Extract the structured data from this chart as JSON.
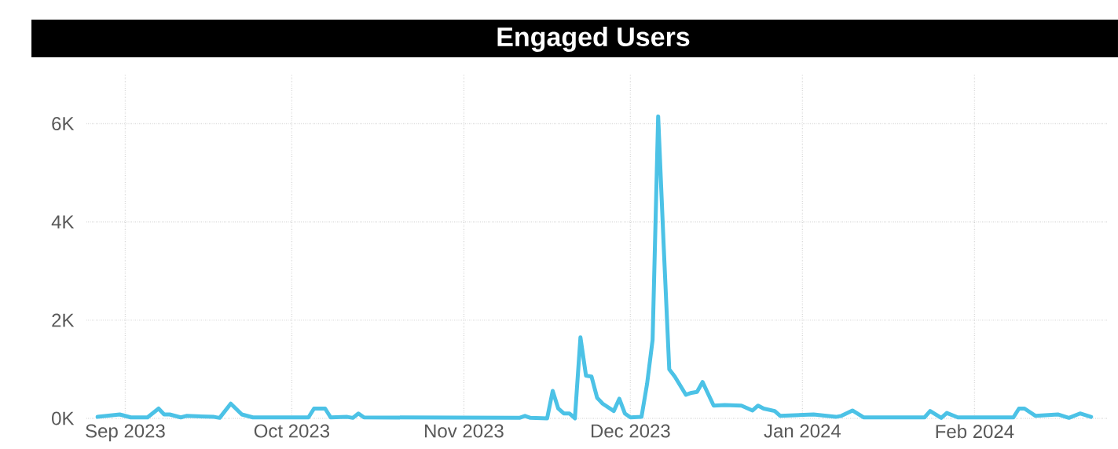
{
  "chart_data": {
    "type": "line",
    "title": "Engaged Users",
    "x": [
      "2023-08-27",
      "2023-08-31",
      "2023-09-02",
      "2023-09-05",
      "2023-09-07",
      "2023-09-08",
      "2023-09-09",
      "2023-09-11",
      "2023-09-12",
      "2023-09-17",
      "2023-09-18",
      "2023-09-20",
      "2023-09-22",
      "2023-09-24",
      "2023-10-04",
      "2023-10-05",
      "2023-10-07",
      "2023-10-08",
      "2023-10-11",
      "2023-10-12",
      "2023-10-13",
      "2023-10-14",
      "2023-11-11",
      "2023-11-12",
      "2023-11-13",
      "2023-11-16",
      "2023-11-17",
      "2023-11-18",
      "2023-11-19",
      "2023-11-20",
      "2023-11-21",
      "2023-11-22",
      "2023-11-23",
      "2023-11-24",
      "2023-11-25",
      "2023-11-26",
      "2023-11-28",
      "2023-11-29",
      "2023-11-30",
      "2023-12-01",
      "2023-12-03",
      "2023-12-04",
      "2023-12-05",
      "2023-12-06",
      "2023-12-07",
      "2023-12-08",
      "2023-12-09",
      "2023-12-11",
      "2023-12-12",
      "2023-12-13",
      "2023-12-14",
      "2023-12-15",
      "2023-12-16",
      "2023-12-18",
      "2023-12-21",
      "2023-12-23",
      "2023-12-24",
      "2023-12-25",
      "2023-12-27",
      "2023-12-28",
      "2024-01-03",
      "2024-01-07",
      "2024-01-08",
      "2024-01-10",
      "2024-01-12",
      "2024-01-23",
      "2024-01-24",
      "2024-01-26",
      "2024-01-27",
      "2024-01-29",
      "2024-02-08",
      "2024-02-09",
      "2024-02-10",
      "2024-02-12",
      "2024-02-16",
      "2024-02-18",
      "2024-02-20",
      "2024-02-22"
    ],
    "values": [
      30,
      80,
      20,
      20,
      200,
      80,
      80,
      20,
      50,
      30,
      10,
      300,
      80,
      20,
      20,
      200,
      200,
      20,
      30,
      10,
      100,
      20,
      10,
      50,
      10,
      0,
      560,
      200,
      100,
      100,
      0,
      1650,
      870,
      850,
      420,
      300,
      150,
      400,
      100,
      20,
      30,
      700,
      1600,
      6150,
      3500,
      1000,
      850,
      480,
      520,
      540,
      740,
      500,
      260,
      270,
      260,
      160,
      260,
      200,
      150,
      50,
      80,
      30,
      50,
      160,
      20,
      20,
      150,
      10,
      110,
      20,
      20,
      200,
      200,
      50,
      80,
      10,
      100,
      30
    ],
    "color": "#4cc2e6",
    "xlim": [
      "2023-08-25",
      "2024-02-25"
    ],
    "ylim": [
      0,
      7000
    ],
    "xticks": [
      {
        "value": "2023-09-01",
        "label": "Sep 2023"
      },
      {
        "value": "2023-10-01",
        "label": "Oct 2023"
      },
      {
        "value": "2023-11-01",
        "label": "Nov 2023"
      },
      {
        "value": "2023-12-01",
        "label": "Dec 2023"
      },
      {
        "value": "2024-01-01",
        "label": "Jan 2024"
      },
      {
        "value": "2024-02-01",
        "label": "Feb 2024"
      }
    ],
    "yticks": [
      {
        "value": 0,
        "label": "0K"
      },
      {
        "value": 2000,
        "label": "2K"
      },
      {
        "value": 4000,
        "label": "4K"
      },
      {
        "value": 6000,
        "label": "6K"
      }
    ],
    "grid": true
  }
}
